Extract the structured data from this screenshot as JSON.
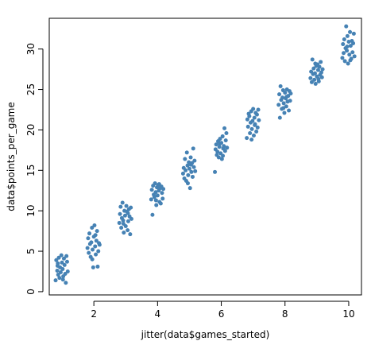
{
  "chart_data": {
    "type": "scatter",
    "title": "",
    "xlabel": "jitter(data$games_started)",
    "ylabel": "data$points_per_game",
    "xlim": [
      0.6,
      10.4
    ],
    "ylim": [
      -0.4,
      33.8
    ],
    "x_ticks": [
      2,
      4,
      6,
      8,
      10
    ],
    "y_ticks": [
      0,
      5,
      10,
      15,
      20,
      25,
      30
    ],
    "grid": false,
    "legend": "none",
    "point_color": "#4682B4",
    "series": [
      {
        "points": [
          [
            0.8,
            1.4
          ],
          [
            0.82,
            3.9
          ],
          [
            0.85,
            2.6
          ],
          [
            0.86,
            3.2
          ],
          [
            0.88,
            2.1
          ],
          [
            0.9,
            4.2
          ],
          [
            0.92,
            1.7
          ],
          [
            0.94,
            3.0
          ],
          [
            0.96,
            2.4
          ],
          [
            0.98,
            4.5
          ],
          [
            1.0,
            3.6
          ],
          [
            1.02,
            2.8
          ],
          [
            1.04,
            1.9
          ],
          [
            1.06,
            4.1
          ],
          [
            1.08,
            3.3
          ],
          [
            1.1,
            2.2
          ],
          [
            1.12,
            1.1
          ],
          [
            1.14,
            4.4
          ],
          [
            1.16,
            3.7
          ],
          [
            1.18,
            2.5
          ],
          [
            0.87,
            3.5
          ],
          [
            1.03,
            1.5
          ],
          [
            1.8,
            5.4
          ],
          [
            1.82,
            6.6
          ],
          [
            1.84,
            4.8
          ],
          [
            1.86,
            7.2
          ],
          [
            1.88,
            5.9
          ],
          [
            1.9,
            4.3
          ],
          [
            1.92,
            6.1
          ],
          [
            1.94,
            7.9
          ],
          [
            1.96,
            5.2
          ],
          [
            1.98,
            3.0
          ],
          [
            2.0,
            6.8
          ],
          [
            2.02,
            8.2
          ],
          [
            2.04,
            5.6
          ],
          [
            2.06,
            4.6
          ],
          [
            2.08,
            6.3
          ],
          [
            2.1,
            7.5
          ],
          [
            2.12,
            3.1
          ],
          [
            2.14,
            5.0
          ],
          [
            2.16,
            6.0
          ],
          [
            2.18,
            5.8
          ],
          [
            1.95,
            4.0
          ],
          [
            2.05,
            7.0
          ],
          [
            2.8,
            8.5
          ],
          [
            2.82,
            9.6
          ],
          [
            2.84,
            10.5
          ],
          [
            2.86,
            7.9
          ],
          [
            2.88,
            9.1
          ],
          [
            2.9,
            11.0
          ],
          [
            2.92,
            8.8
          ],
          [
            2.94,
            7.3
          ],
          [
            2.96,
            10.0
          ],
          [
            2.98,
            9.4
          ],
          [
            3.0,
            8.1
          ],
          [
            3.02,
            10.6
          ],
          [
            3.04,
            9.9
          ],
          [
            3.06,
            7.6
          ],
          [
            3.08,
            8.7
          ],
          [
            3.1,
            10.2
          ],
          [
            3.12,
            9.3
          ],
          [
            3.14,
            7.1
          ],
          [
            3.16,
            10.4
          ],
          [
            3.18,
            9.0
          ],
          [
            2.93,
            8.4
          ],
          [
            3.07,
            9.7
          ],
          [
            3.8,
            11.4
          ],
          [
            3.82,
            12.6
          ],
          [
            3.84,
            9.5
          ],
          [
            3.86,
            13.1
          ],
          [
            3.88,
            12.0
          ],
          [
            3.9,
            11.7
          ],
          [
            3.92,
            13.4
          ],
          [
            3.94,
            12.3
          ],
          [
            3.96,
            10.7
          ],
          [
            3.98,
            12.9
          ],
          [
            4.0,
            11.9
          ],
          [
            4.02,
            13.2
          ],
          [
            4.04,
            12.5
          ],
          [
            4.06,
            11.1
          ],
          [
            4.08,
            12.8
          ],
          [
            4.1,
            10.9
          ],
          [
            4.12,
            13.0
          ],
          [
            4.14,
            12.2
          ],
          [
            4.16,
            11.5
          ],
          [
            4.18,
            12.7
          ],
          [
            3.95,
            11.3
          ],
          [
            4.05,
            13.3
          ],
          [
            4.8,
            14.6
          ],
          [
            4.82,
            15.3
          ],
          [
            4.84,
            14.0
          ],
          [
            4.86,
            16.4
          ],
          [
            4.88,
            15.0
          ],
          [
            4.9,
            13.7
          ],
          [
            4.92,
            17.2
          ],
          [
            4.94,
            15.6
          ],
          [
            4.96,
            14.4
          ],
          [
            4.98,
            16.0
          ],
          [
            5.0,
            15.2
          ],
          [
            5.02,
            12.8
          ],
          [
            5.04,
            16.6
          ],
          [
            5.06,
            14.8
          ],
          [
            5.08,
            15.9
          ],
          [
            5.1,
            14.2
          ],
          [
            5.12,
            17.7
          ],
          [
            5.14,
            15.4
          ],
          [
            5.16,
            16.2
          ],
          [
            5.18,
            14.9
          ],
          [
            4.95,
            13.4
          ],
          [
            5.05,
            15.7
          ],
          [
            5.8,
            14.8
          ],
          [
            5.82,
            17.6
          ],
          [
            5.84,
            18.2
          ],
          [
            5.86,
            16.9
          ],
          [
            5.88,
            17.3
          ],
          [
            5.9,
            18.6
          ],
          [
            5.92,
            16.6
          ],
          [
            5.94,
            17.9
          ],
          [
            5.96,
            18.9
          ],
          [
            5.98,
            17.1
          ],
          [
            6.0,
            18.4
          ],
          [
            6.02,
            16.4
          ],
          [
            6.04,
            19.2
          ],
          [
            6.06,
            17.7
          ],
          [
            6.08,
            18.0
          ],
          [
            6.1,
            20.2
          ],
          [
            6.12,
            17.4
          ],
          [
            6.14,
            18.7
          ],
          [
            6.16,
            19.6
          ],
          [
            6.18,
            17.8
          ],
          [
            5.95,
            18.3
          ],
          [
            6.05,
            16.8
          ],
          [
            6.8,
            19.0
          ],
          [
            6.82,
            21.3
          ],
          [
            6.84,
            20.4
          ],
          [
            6.86,
            22.0
          ],
          [
            6.88,
            21.7
          ],
          [
            6.9,
            19.6
          ],
          [
            6.92,
            20.9
          ],
          [
            6.94,
            22.3
          ],
          [
            6.96,
            20.1
          ],
          [
            6.98,
            21.1
          ],
          [
            7.0,
            22.6
          ],
          [
            7.02,
            19.3
          ],
          [
            7.04,
            21.5
          ],
          [
            7.06,
            20.7
          ],
          [
            7.08,
            22.1
          ],
          [
            7.1,
            19.8
          ],
          [
            7.12,
            21.9
          ],
          [
            7.14,
            20.3
          ],
          [
            7.16,
            22.5
          ],
          [
            7.18,
            21.2
          ],
          [
            6.95,
            18.8
          ],
          [
            7.05,
            20.6
          ],
          [
            7.8,
            23.1
          ],
          [
            7.82,
            24.4
          ],
          [
            7.84,
            21.5
          ],
          [
            7.86,
            25.4
          ],
          [
            7.88,
            23.7
          ],
          [
            7.9,
            22.6
          ],
          [
            7.92,
            24.0
          ],
          [
            7.94,
            24.9
          ],
          [
            7.96,
            23.3
          ],
          [
            7.98,
            22.1
          ],
          [
            8.0,
            24.6
          ],
          [
            8.02,
            23.9
          ],
          [
            8.04,
            22.9
          ],
          [
            8.06,
            25.0
          ],
          [
            8.08,
            23.5
          ],
          [
            8.1,
            24.2
          ],
          [
            8.12,
            22.4
          ],
          [
            8.14,
            24.8
          ],
          [
            8.16,
            23.6
          ],
          [
            8.18,
            24.5
          ],
          [
            7.95,
            22.7
          ],
          [
            8.05,
            24.1
          ],
          [
            8.8,
            26.4
          ],
          [
            8.82,
            27.2
          ],
          [
            8.84,
            25.9
          ],
          [
            8.86,
            28.7
          ],
          [
            8.88,
            26.9
          ],
          [
            8.9,
            27.6
          ],
          [
            8.92,
            26.2
          ],
          [
            8.94,
            27.0
          ],
          [
            8.96,
            25.7
          ],
          [
            8.98,
            27.9
          ],
          [
            9.0,
            26.6
          ],
          [
            9.02,
            28.1
          ],
          [
            9.04,
            27.4
          ],
          [
            9.06,
            26.0
          ],
          [
            9.08,
            27.8
          ],
          [
            9.1,
            26.8
          ],
          [
            9.12,
            28.4
          ],
          [
            9.14,
            27.1
          ],
          [
            9.16,
            26.5
          ],
          [
            9.18,
            27.5
          ],
          [
            8.95,
            28.2
          ],
          [
            9.05,
            26.3
          ],
          [
            9.8,
            28.9
          ],
          [
            9.82,
            30.6
          ],
          [
            9.84,
            29.5
          ],
          [
            9.86,
            31.2
          ],
          [
            9.88,
            28.5
          ],
          [
            9.9,
            30.1
          ],
          [
            9.92,
            32.8
          ],
          [
            9.94,
            29.8
          ],
          [
            9.96,
            31.6
          ],
          [
            9.98,
            28.2
          ],
          [
            10.0,
            30.9
          ],
          [
            10.02,
            29.3
          ],
          [
            10.04,
            32.1
          ],
          [
            10.06,
            30.4
          ],
          [
            10.08,
            28.8
          ],
          [
            10.1,
            31.0
          ],
          [
            10.12,
            29.6
          ],
          [
            10.14,
            30.7
          ],
          [
            10.16,
            31.9
          ],
          [
            10.18,
            29.1
          ],
          [
            9.95,
            30.3
          ],
          [
            10.05,
            28.6
          ]
        ]
      }
    ]
  }
}
